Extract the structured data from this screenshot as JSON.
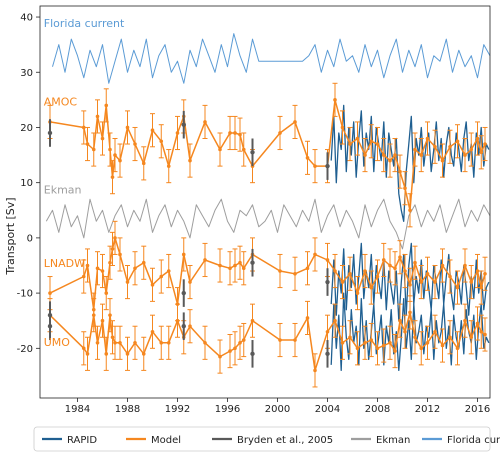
{
  "chart_data": {
    "type": "line",
    "ylabel": "Transport [Sv]",
    "xlim": [
      1981,
      2017
    ],
    "ylim": [
      -29,
      42
    ],
    "xticks": [
      1984,
      1988,
      1992,
      1996,
      2000,
      2004,
      2008,
      2012,
      2016
    ],
    "yticks": [
      -20,
      -10,
      0,
      10,
      20,
      30,
      40
    ],
    "grid": false,
    "legend_placement": "bottom",
    "colors": {
      "rapid": "#1f5f91",
      "model": "#f5871f",
      "bryden": "#595959",
      "ekman": "#9e9e9e",
      "florida": "#5b9bd5"
    },
    "annotations": [
      {
        "text": "Florida current",
        "x": 1981.3,
        "y": 38.2,
        "color": "#5b9bd5"
      },
      {
        "text": "AMOC",
        "x": 1981.3,
        "y": 24.0,
        "color": "#f5871f"
      },
      {
        "text": "Ekman",
        "x": 1981.3,
        "y": 8.0,
        "color": "#9e9e9e"
      },
      {
        "text": "LNADW",
        "x": 1981.3,
        "y": -5.3,
        "color": "#f5871f"
      },
      {
        "text": "UMO",
        "x": 1981.3,
        "y": -19.6,
        "color": "#f5871f"
      }
    ],
    "legend": [
      {
        "label": "RAPID",
        "key": "rapid"
      },
      {
        "label": "Model",
        "key": "model"
      },
      {
        "label": "Bryden et al., 2005",
        "key": "bryden"
      },
      {
        "label": "Ekman",
        "key": "ekman"
      },
      {
        "label": "Florida current",
        "key": "florida"
      }
    ],
    "series": {
      "florida": {
        "x": [
          1982.0,
          1982.5,
          1983.0,
          1983.5,
          1984.0,
          1984.5,
          1985.0,
          1985.5,
          1986.0,
          1986.5,
          1987.0,
          1987.5,
          1988.0,
          1988.5,
          1989.0,
          1989.5,
          1990.0,
          1990.5,
          1991.0,
          1991.5,
          1992.0,
          1992.5,
          1993.0,
          1993.5,
          1994.0,
          1994.5,
          1995.0,
          1995.5,
          1996.0,
          1996.5,
          1997.0,
          1997.5,
          1998.0,
          1998.5,
          1999.0,
          1999.5,
          2000.0,
          2000.5,
          2001.0,
          2001.5,
          2002.0,
          2002.5,
          2003.0,
          2003.5,
          2004.0,
          2004.5,
          2005.0,
          2005.5,
          2006.0,
          2006.5,
          2007.0,
          2007.5,
          2008.0,
          2008.5,
          2009.0,
          2009.5,
          2010.0,
          2010.5,
          2011.0,
          2011.5,
          2012.0,
          2012.5,
          2013.0,
          2013.5,
          2014.0,
          2014.5,
          2015.0,
          2015.5,
          2016.0,
          2016.5,
          2017.0
        ],
        "y": [
          31,
          35,
          30,
          36,
          33,
          29,
          34,
          31,
          35,
          28,
          32,
          36,
          30,
          34,
          31,
          36,
          29,
          33,
          35,
          30,
          32,
          28,
          34,
          31,
          36,
          33,
          30,
          35,
          31,
          37,
          33,
          30,
          36,
          32,
          32,
          32,
          32,
          32,
          32,
          32,
          32,
          33,
          35,
          30,
          34,
          31,
          36,
          32,
          33,
          30,
          35,
          31,
          34,
          29,
          33,
          36,
          30,
          34,
          31,
          35,
          29,
          33,
          32,
          36,
          30,
          34,
          31,
          33,
          29,
          35,
          33
        ]
      },
      "ekman": {
        "x": [
          1981.5,
          1982.0,
          1982.5,
          1983.0,
          1983.5,
          1984.0,
          1984.5,
          1985.0,
          1985.5,
          1986.0,
          1986.5,
          1987.0,
          1987.5,
          1988.0,
          1988.5,
          1989.0,
          1989.5,
          1990.0,
          1990.5,
          1991.0,
          1991.5,
          1992.0,
          1992.5,
          1993.0,
          1993.5,
          1994.0,
          1994.5,
          1995.0,
          1995.5,
          1996.0,
          1996.5,
          1997.0,
          1997.5,
          1998.0,
          1998.5,
          1999.0,
          1999.5,
          2000.0,
          2000.5,
          2001.0,
          2001.5,
          2002.0,
          2002.5,
          2003.0,
          2003.5,
          2004.0,
          2004.5,
          2005.0,
          2005.5,
          2006.0,
          2006.5,
          2007.0,
          2007.5,
          2008.0,
          2008.5,
          2009.0,
          2009.5,
          2010.0,
          2010.5,
          2011.0,
          2011.5,
          2012.0,
          2012.5,
          2013.0,
          2013.5,
          2014.0,
          2014.5,
          2015.0,
          2015.5,
          2016.0,
          2016.5,
          2017.0
        ],
        "y": [
          3,
          5,
          1,
          6,
          2,
          4,
          0,
          7,
          3,
          5,
          1,
          4,
          6,
          2,
          5,
          3,
          7,
          1,
          4,
          6,
          2,
          5,
          3,
          0,
          6,
          4,
          2,
          5,
          7,
          3,
          1,
          5,
          4,
          6,
          2,
          3,
          5,
          1,
          6,
          4,
          2,
          5,
          3,
          7,
          1,
          4,
          6,
          2,
          5,
          3,
          0,
          6,
          2,
          5,
          7,
          3,
          1,
          -2,
          4,
          6,
          2,
          5,
          3,
          6,
          1,
          4,
          7,
          2,
          5,
          3,
          6,
          4
        ]
      },
      "rapid_amoc": {
        "x": [
          2004.3,
          2004.5,
          2004.7,
          2004.9,
          2005.1,
          2005.3,
          2005.5,
          2005.7,
          2005.9,
          2006.1,
          2006.3,
          2006.5,
          2006.7,
          2006.9,
          2007.1,
          2007.3,
          2007.5,
          2007.7,
          2007.9,
          2008.1,
          2008.3,
          2008.5,
          2008.7,
          2008.9,
          2009.1,
          2009.3,
          2009.5,
          2009.7,
          2009.9,
          2010.1,
          2010.3,
          2010.5,
          2010.7,
          2010.9,
          2011.1,
          2011.3,
          2011.5,
          2011.7,
          2011.9,
          2012.1,
          2012.3,
          2012.5,
          2012.7,
          2012.9,
          2013.1,
          2013.3,
          2013.5,
          2013.7,
          2013.9,
          2014.1,
          2014.3,
          2014.5,
          2014.7,
          2014.9,
          2015.1,
          2015.3,
          2015.5,
          2015.7,
          2015.9,
          2016.1,
          2016.3,
          2016.5,
          2016.7,
          2016.9
        ],
        "y": [
          14,
          22,
          10,
          19,
          16,
          24,
          12,
          20,
          15,
          21,
          11,
          18,
          23,
          13,
          19,
          16,
          22,
          12,
          20,
          17,
          14,
          21,
          11,
          19,
          16,
          13,
          18,
          8,
          5,
          3,
          12,
          17,
          22,
          10,
          18,
          15,
          20,
          13,
          17,
          19,
          12,
          16,
          21,
          14,
          18,
          11,
          17,
          20,
          15,
          13,
          19,
          16,
          12,
          18,
          21,
          14,
          17,
          11,
          19,
          15,
          20,
          13,
          17,
          16
        ]
      },
      "rapid_lnadw": {
        "x": [
          2004.3,
          2004.5,
          2004.7,
          2004.9,
          2005.1,
          2005.3,
          2005.5,
          2005.7,
          2005.9,
          2006.1,
          2006.3,
          2006.5,
          2006.7,
          2006.9,
          2007.1,
          2007.3,
          2007.5,
          2007.7,
          2007.9,
          2008.1,
          2008.3,
          2008.5,
          2008.7,
          2008.9,
          2009.1,
          2009.3,
          2009.5,
          2009.7,
          2009.9,
          2010.1,
          2010.3,
          2010.5,
          2010.7,
          2010.9,
          2011.1,
          2011.3,
          2011.5,
          2011.7,
          2011.9,
          2012.1,
          2012.3,
          2012.5,
          2012.7,
          2012.9,
          2013.1,
          2013.3,
          2013.5,
          2013.7,
          2013.9,
          2014.1,
          2014.3,
          2014.5,
          2014.7,
          2014.9,
          2015.1,
          2015.3,
          2015.5,
          2015.7,
          2015.9,
          2016.1,
          2016.3,
          2016.5,
          2016.7,
          2016.9
        ],
        "y": [
          -12,
          -4,
          -14,
          -6,
          -10,
          -2,
          -13,
          -5,
          -9,
          -3,
          -12,
          -7,
          -1,
          -11,
          -6,
          -9,
          -3,
          -12,
          -5,
          -8,
          -11,
          -4,
          -13,
          -6,
          -9,
          -12,
          -6,
          -15,
          -8,
          -3,
          -14,
          -5,
          -1,
          -12,
          -7,
          -10,
          -4,
          -11,
          -6,
          -9,
          -13,
          -5,
          -8,
          -11,
          -4,
          -12,
          -7,
          -3,
          -10,
          -13,
          -6,
          -8,
          -12,
          -5,
          -9,
          -14,
          -7,
          -11,
          -4,
          -10,
          -6,
          -13,
          -9,
          -8
        ]
      },
      "rapid_umo": {
        "x": [
          2004.3,
          2004.5,
          2004.7,
          2004.9,
          2005.1,
          2005.3,
          2005.5,
          2005.7,
          2005.9,
          2006.1,
          2006.3,
          2006.5,
          2006.7,
          2006.9,
          2007.1,
          2007.3,
          2007.5,
          2007.7,
          2007.9,
          2008.1,
          2008.3,
          2008.5,
          2008.7,
          2008.9,
          2009.1,
          2009.3,
          2009.5,
          2009.7,
          2009.9,
          2010.1,
          2010.3,
          2010.5,
          2010.7,
          2010.9,
          2011.1,
          2011.3,
          2011.5,
          2011.7,
          2011.9,
          2012.1,
          2012.3,
          2012.5,
          2012.7,
          2012.9,
          2013.1,
          2013.3,
          2013.5,
          2013.7,
          2013.9,
          2014.1,
          2014.3,
          2014.5,
          2014.7,
          2014.9,
          2015.1,
          2015.3,
          2015.5,
          2015.7,
          2015.9,
          2016.1,
          2016.3,
          2016.5,
          2016.7,
          2016.9
        ],
        "y": [
          -23,
          -12,
          -20,
          -14,
          -24,
          -10,
          -18,
          -22,
          -13,
          -19,
          -16,
          -23,
          -11,
          -20,
          -15,
          -22,
          -17,
          -12,
          -21,
          -18,
          -14,
          -23,
          -16,
          -19,
          -13,
          -21,
          -17,
          -24,
          -18,
          -11,
          -20,
          -15,
          -22,
          -12,
          -19,
          -17,
          -14,
          -21,
          -16,
          -18,
          -13,
          -22,
          -15,
          -19,
          -17,
          -12,
          -20,
          -16,
          -23,
          -14,
          -18,
          -20,
          -15,
          -21,
          -13,
          -17,
          -19,
          -14,
          -22,
          -16,
          -12,
          -20,
          -18,
          -19
        ]
      },
      "model_amoc": {
        "x": [
          1981.8,
          1984.5,
          1984.8,
          1985.3,
          1985.6,
          1986.0,
          1986.3,
          1986.6,
          1986.8,
          1987.0,
          1987.4,
          1988.0,
          1988.6,
          1989.3,
          1990.0,
          1990.7,
          1991.3,
          1992.0,
          1992.5,
          1993.0,
          1994.2,
          1995.4,
          1996.2,
          1996.6,
          1997.0,
          1997.3,
          1998.0,
          2000.2,
          2001.4,
          2002.4,
          2003.0,
          2004.0,
          2004.6,
          2005.2,
          2005.8,
          2006.4,
          2007.0,
          2007.5,
          2008.0,
          2008.5,
          2009.0,
          2009.4,
          2009.8,
          2010.2,
          2010.6,
          2011.0,
          2011.5,
          2012.0,
          2012.6,
          2013.2,
          2013.8,
          2014.4,
          2015.0,
          2015.5,
          2016.0,
          2016.3,
          2016.6
        ],
        "y": [
          21,
          20,
          17,
          16,
          22,
          18,
          24,
          16,
          11,
          15,
          14,
          20,
          17,
          13.5,
          19.5,
          17.5,
          13,
          19,
          22,
          14,
          21,
          16,
          19,
          19,
          18.7,
          16,
          13,
          19,
          21,
          14.5,
          13,
          13,
          25,
          20,
          17,
          18,
          15,
          17.5,
          17,
          15,
          14,
          15,
          12,
          9,
          5,
          16,
          15,
          18,
          16.5,
          14,
          16.5,
          17.5,
          15,
          16,
          18,
          15.5,
          17
        ]
      },
      "model_lnadw": {
        "x": [
          1981.8,
          1984.5,
          1984.8,
          1985.3,
          1985.6,
          1986.0,
          1986.3,
          1986.6,
          1986.8,
          1987.0,
          1987.4,
          1988.0,
          1988.6,
          1989.3,
          1990.0,
          1990.7,
          1991.3,
          1992.0,
          1992.5,
          1993.0,
          1994.2,
          1995.4,
          1996.2,
          1996.6,
          1997.0,
          1997.3,
          1998.0,
          2000.2,
          2001.4,
          2002.4,
          2003.0,
          2004.0,
          2004.6,
          2005.2,
          2005.8,
          2006.4,
          2007.0,
          2007.5,
          2008.0,
          2008.5,
          2009.0,
          2009.4,
          2009.8,
          2010.2,
          2010.6,
          2011.0,
          2011.5,
          2012.0,
          2012.6,
          2013.2,
          2013.8,
          2014.4,
          2015.0,
          2015.5,
          2016.0,
          2016.3,
          2016.6
        ],
        "y": [
          -10,
          -7,
          -5,
          -13,
          -5.5,
          -6,
          -10,
          -4.5,
          -2,
          0,
          -3,
          -8,
          -5.5,
          -4.5,
          -8.5,
          -7,
          -6,
          -12,
          -3,
          -8,
          -4,
          -5,
          -5.5,
          -5,
          -4.5,
          -5.5,
          -3,
          -6,
          -6.5,
          -5.5,
          -3,
          -4,
          -6,
          -8,
          -6.5,
          -10,
          -6,
          -9,
          -7,
          -4,
          -5,
          -5.5,
          -3.5,
          -6,
          -8.5,
          -4.5,
          -8,
          -6.5,
          -8,
          -5,
          -7,
          -9,
          -5,
          -8,
          -6,
          -9,
          -6.5
        ]
      },
      "model_umo": {
        "x": [
          1981.8,
          1984.5,
          1984.8,
          1985.3,
          1985.6,
          1986.0,
          1986.3,
          1986.6,
          1986.8,
          1987.0,
          1987.4,
          1988.0,
          1988.6,
          1989.3,
          1990.0,
          1990.7,
          1991.3,
          1992.0,
          1992.5,
          1993.0,
          1994.2,
          1995.4,
          1996.2,
          1996.6,
          1997.0,
          1997.3,
          1998.0,
          2000.2,
          2001.4,
          2002.4,
          2003.0,
          2004.0,
          2004.6,
          2005.2,
          2005.8,
          2006.4,
          2007.0,
          2007.5,
          2008.0,
          2008.5,
          2009.0,
          2009.4,
          2009.8,
          2010.2,
          2010.6,
          2011.0,
          2011.5,
          2012.0,
          2012.6,
          2013.2,
          2013.8,
          2014.4,
          2015.0,
          2015.5,
          2016.0,
          2016.3,
          2016.6
        ],
        "y": [
          -14,
          -20,
          -21,
          -14,
          -19,
          -15,
          -21,
          -14,
          -18,
          -19,
          -19,
          -21,
          -19,
          -21,
          -17,
          -19,
          -19,
          -15,
          -18,
          -16,
          -19,
          -21.5,
          -20.5,
          -20,
          -19,
          -18.5,
          -15,
          -18.5,
          -18.5,
          -14.5,
          -24,
          -17,
          -15,
          -19,
          -18,
          -20,
          -19,
          -18.5,
          -20,
          -19.5,
          -19,
          -20.5,
          -15,
          -17,
          -13.5,
          -18,
          -20,
          -19,
          -17,
          -19.5,
          -18,
          -20,
          -15,
          -18,
          -15.5,
          -17,
          -17.5
        ]
      },
      "bryden": {
        "x": [
          1981.8,
          1992.5,
          1998.0,
          2004.0
        ],
        "amoc": [
          19,
          20.5,
          15.5,
          13
        ],
        "lnadw": [
          -14,
          -10,
          -4.5,
          -8
        ],
        "umo": [
          -16,
          -16,
          -21,
          -21
        ]
      }
    }
  }
}
